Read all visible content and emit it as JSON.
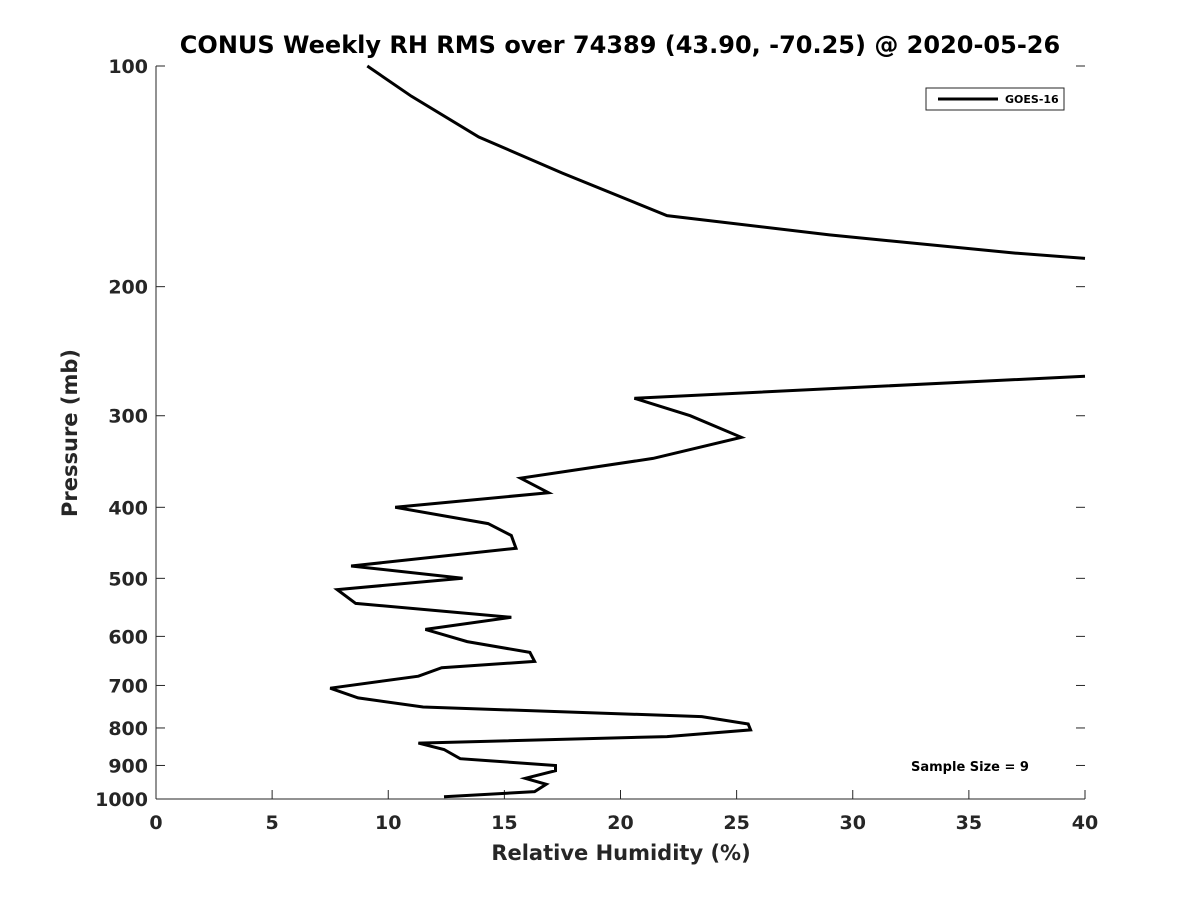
{
  "chart_data": {
    "type": "line",
    "title": "CONUS Weekly RH RMS over 74389 (43.90, -70.25) @ 2020-05-26",
    "xlabel": "Relative Humidity (%)",
    "ylabel": "Pressure (mb)",
    "xlim": [
      0,
      40
    ],
    "ylim": [
      100,
      1000
    ],
    "y_scale": "log",
    "y_reversed": true,
    "grid": false,
    "legend_position": "top-right",
    "x_ticks": [
      "0",
      "5",
      "10",
      "15",
      "20",
      "25",
      "30",
      "35",
      "40"
    ],
    "y_ticks": [
      "100",
      "200",
      "300",
      "400",
      "500",
      "600",
      "700",
      "800",
      "900",
      "1000"
    ],
    "series": [
      {
        "name": "GOES-16",
        "color": "#000000",
        "points": [
          [
            9.1,
            100
          ],
          [
            11.0,
            110
          ],
          [
            13.9,
            125
          ],
          [
            17.5,
            140
          ],
          [
            22.0,
            160
          ],
          [
            29.0,
            170
          ],
          [
            37.0,
            180
          ],
          [
            40.0,
            183
          ],
          [
            null,
            null
          ],
          [
            40.0,
            265
          ],
          [
            20.6,
            284
          ],
          [
            23.0,
            300
          ],
          [
            25.2,
            321
          ],
          [
            21.4,
            343
          ],
          [
            15.7,
            365
          ],
          [
            16.9,
            382
          ],
          [
            10.3,
            400
          ],
          [
            14.3,
            421
          ],
          [
            15.3,
            437
          ],
          [
            15.5,
            455
          ],
          [
            8.4,
            481
          ],
          [
            13.2,
            500
          ],
          [
            7.8,
            518
          ],
          [
            8.6,
            541
          ],
          [
            15.3,
            565
          ],
          [
            11.6,
            587
          ],
          [
            13.4,
            610
          ],
          [
            16.1,
            631
          ],
          [
            16.3,
            649
          ],
          [
            12.3,
            662
          ],
          [
            11.3,
            680
          ],
          [
            7.5,
            706
          ],
          [
            8.7,
            728
          ],
          [
            11.5,
            749
          ],
          [
            23.5,
            772
          ],
          [
            25.5,
            790
          ],
          [
            25.6,
            805
          ],
          [
            22.0,
            822
          ],
          [
            11.3,
            839
          ],
          [
            12.4,
            856
          ],
          [
            13.1,
            881
          ],
          [
            17.2,
            900
          ],
          [
            17.2,
            915
          ],
          [
            15.9,
            937
          ],
          [
            16.8,
            955
          ],
          [
            16.3,
            977
          ],
          [
            12.4,
            993
          ]
        ]
      }
    ],
    "annotations": [
      "Sample Size = 9"
    ]
  }
}
